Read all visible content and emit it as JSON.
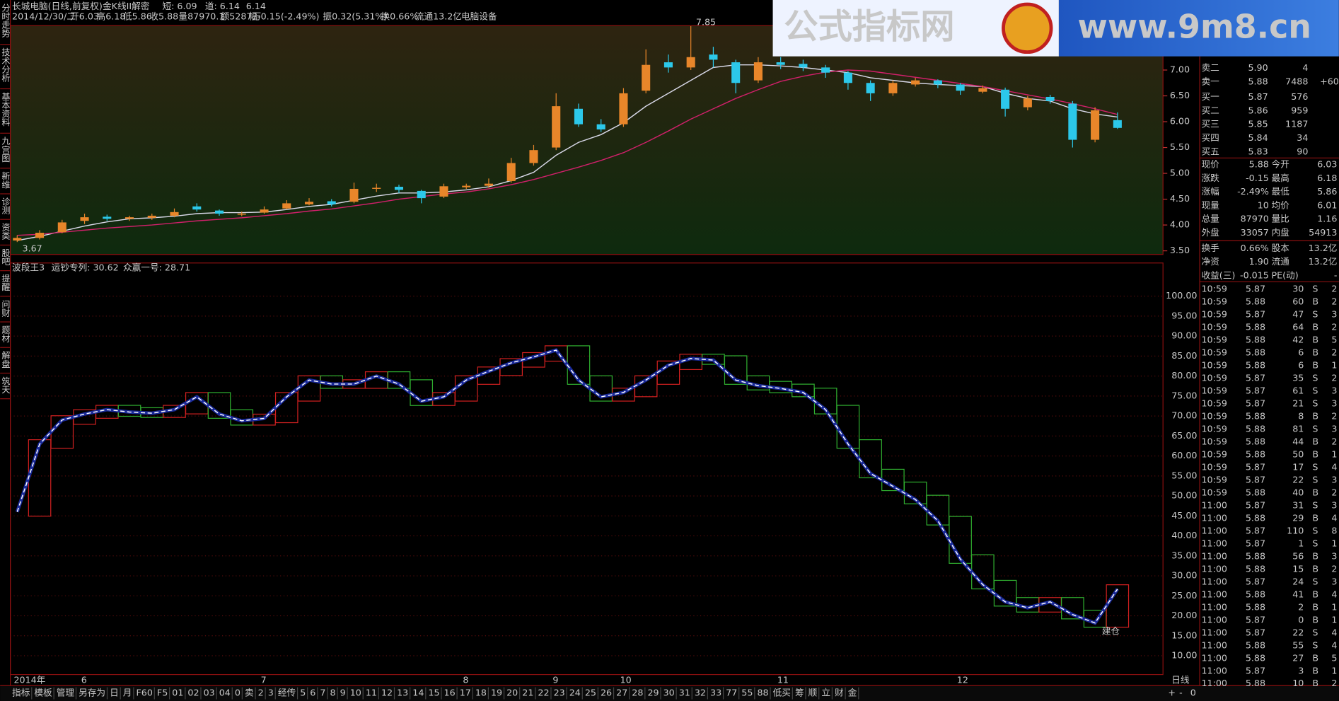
{
  "header": {
    "stock": "长城电脑(日线,前复权)",
    "formula": "金K线II解密",
    "ma_short_label": "短: 6.09",
    "ma_long_label": "道: 6.14",
    "ma_extra": "6.14",
    "date": "2014/12/30/二",
    "open": "开6.03",
    "high": "高6.18",
    "low": "低5.86",
    "close": "收5.88",
    "volume": "量87970.1",
    "amount": "额5287万",
    "change": "幅-0.15(-2.49%)",
    "amplitude": "振0.32(5.31%)",
    "turnover": "换0.66%",
    "float": "流通13.2亿",
    "sector": "电脑设备"
  },
  "sidebar": [
    "分时走势",
    "技术分析",
    "基本资料",
    "九宫图",
    "新维",
    "诊测",
    "资类",
    "股吧",
    "提醒",
    "问财",
    "题材",
    "解盘",
    "筑天"
  ],
  "watermark": {
    "title": "公式指标网",
    "url": "www.9m8.cn"
  },
  "chart_data": [
    {
      "type": "candlestick",
      "up_color": "#e8862a",
      "down_color": "#2cc8ea",
      "candles": [
        [
          3.7,
          3.8,
          3.67,
          3.75
        ],
        [
          3.75,
          3.9,
          3.72,
          3.85
        ],
        [
          3.86,
          4.1,
          3.84,
          4.05
        ],
        [
          4.08,
          4.22,
          4.02,
          4.15
        ],
        [
          4.16,
          4.2,
          4.08,
          4.12
        ],
        [
          4.12,
          4.18,
          4.08,
          4.15
        ],
        [
          4.14,
          4.22,
          4.1,
          4.18
        ],
        [
          4.18,
          4.32,
          4.15,
          4.25
        ],
        [
          4.36,
          4.42,
          4.26,
          4.3
        ],
        [
          4.28,
          4.3,
          4.18,
          4.22
        ],
        [
          4.2,
          4.26,
          4.17,
          4.22
        ],
        [
          4.24,
          4.36,
          4.22,
          4.3
        ],
        [
          4.32,
          4.48,
          4.3,
          4.42
        ],
        [
          4.4,
          4.52,
          4.38,
          4.45
        ],
        [
          4.46,
          4.5,
          4.36,
          4.4
        ],
        [
          4.45,
          4.82,
          4.42,
          4.7
        ],
        [
          4.7,
          4.8,
          4.64,
          4.72
        ],
        [
          4.74,
          4.78,
          4.62,
          4.68
        ],
        [
          4.66,
          4.68,
          4.42,
          4.52
        ],
        [
          4.55,
          4.8,
          4.52,
          4.75
        ],
        [
          4.73,
          4.8,
          4.7,
          4.76
        ],
        [
          4.76,
          4.9,
          4.72,
          4.8
        ],
        [
          4.85,
          5.3,
          4.82,
          5.2
        ],
        [
          5.2,
          5.55,
          5.15,
          5.45
        ],
        [
          5.5,
          6.55,
          5.45,
          6.3
        ],
        [
          6.25,
          6.35,
          5.9,
          5.95
        ],
        [
          5.95,
          6.05,
          5.8,
          5.85
        ],
        [
          5.95,
          6.65,
          5.9,
          6.55
        ],
        [
          6.6,
          7.4,
          6.55,
          7.1
        ],
        [
          7.15,
          7.3,
          6.95,
          7.05
        ],
        [
          7.05,
          7.85,
          7.0,
          7.25
        ],
        [
          7.3,
          7.45,
          7.05,
          7.2
        ],
        [
          7.15,
          7.2,
          6.55,
          6.75
        ],
        [
          6.8,
          7.25,
          6.75,
          7.15
        ],
        [
          7.15,
          7.25,
          7.02,
          7.1
        ],
        [
          7.12,
          7.2,
          6.98,
          7.05
        ],
        [
          7.05,
          7.1,
          6.85,
          6.95
        ],
        [
          6.95,
          6.98,
          6.62,
          6.75
        ],
        [
          6.75,
          6.8,
          6.4,
          6.55
        ],
        [
          6.55,
          6.8,
          6.5,
          6.75
        ],
        [
          6.72,
          6.85,
          6.68,
          6.8
        ],
        [
          6.8,
          6.82,
          6.65,
          6.72
        ],
        [
          6.72,
          6.75,
          6.52,
          6.6
        ],
        [
          6.58,
          6.7,
          6.55,
          6.65
        ],
        [
          6.62,
          6.66,
          6.1,
          6.25
        ],
        [
          6.28,
          6.5,
          6.22,
          6.45
        ],
        [
          6.48,
          6.52,
          6.35,
          6.4
        ],
        [
          6.35,
          6.4,
          5.5,
          5.65
        ],
        [
          5.65,
          6.28,
          5.6,
          6.22
        ],
        [
          6.03,
          6.18,
          5.86,
          5.88
        ]
      ],
      "lines": [
        {
          "color": "#d8d8e8",
          "values": [
            3.7,
            3.78,
            3.88,
            3.98,
            4.06,
            4.12,
            4.14,
            4.17,
            4.22,
            4.24,
            4.24,
            4.25,
            4.3,
            4.36,
            4.4,
            4.48,
            4.56,
            4.62,
            4.62,
            4.64,
            4.68,
            4.74,
            4.86,
            5.02,
            5.35,
            5.6,
            5.75,
            5.98,
            6.3,
            6.55,
            6.8,
            7.05,
            7.1,
            7.1,
            7.08,
            7.05,
            7.0,
            6.95,
            6.85,
            6.8,
            6.75,
            6.72,
            6.7,
            6.68,
            6.55,
            6.45,
            6.4,
            6.25,
            6.15,
            6.09
          ]
        },
        {
          "color": "#d0206a",
          "values": [
            3.8,
            3.82,
            3.86,
            3.9,
            3.94,
            3.97,
            4.0,
            4.04,
            4.08,
            4.11,
            4.14,
            4.18,
            4.22,
            4.27,
            4.31,
            4.37,
            4.43,
            4.5,
            4.55,
            4.6,
            4.64,
            4.7,
            4.78,
            4.88,
            5.0,
            5.12,
            5.25,
            5.4,
            5.6,
            5.82,
            6.05,
            6.25,
            6.45,
            6.62,
            6.78,
            6.88,
            6.96,
            7.0,
            6.98,
            6.92,
            6.86,
            6.8,
            6.74,
            6.68,
            6.6,
            6.52,
            6.44,
            6.35,
            6.25,
            6.14
          ]
        }
      ],
      "max_label": "7.85",
      "min_label": "3.67",
      "ylim": [
        3.43,
        7.86
      ],
      "yticks": [
        {
          "value": 3.5,
          "label": "3.50"
        },
        {
          "value": 4,
          "label": "4.00"
        },
        {
          "value": 4.5,
          "label": "4.50"
        },
        {
          "value": 5,
          "label": "5.00"
        },
        {
          "value": 5.5,
          "label": "5.50"
        },
        {
          "value": 6,
          "label": "6.00"
        },
        {
          "value": 6.5,
          "label": "6.50"
        },
        {
          "value": 7,
          "label": "7.00"
        }
      ]
    },
    {
      "type": "line",
      "title": "波段王3",
      "annotations": [
        "运钞专列: 30.62",
        "众赢一号: 28.71"
      ],
      "signal": "建仓",
      "color": "#ffffff",
      "rise_color": "#d02020",
      "fall_color": "#30b030",
      "categories": [
        "2014年",
        null,
        null,
        "6",
        null,
        null,
        null,
        null,
        null,
        null,
        null,
        "7",
        null,
        null,
        null,
        null,
        null,
        null,
        null,
        null,
        "8",
        null,
        null,
        null,
        "9",
        null,
        null,
        "10",
        null,
        null,
        null,
        null,
        null,
        null,
        "11",
        null,
        null,
        null,
        null,
        null,
        null,
        null,
        "12",
        null,
        null,
        null,
        null,
        null,
        null,
        null
      ],
      "values": [
        46,
        63,
        69,
        70.5,
        71.6,
        71,
        70.7,
        71.6,
        74.8,
        70.5,
        68.8,
        69.4,
        74.8,
        79,
        78,
        78,
        80,
        78,
        73.7,
        74.8,
        79,
        81.2,
        83.3,
        84.8,
        86.5,
        79,
        74.8,
        75.9,
        79,
        82.7,
        84.4,
        84,
        79,
        77.6,
        76.9,
        75.9,
        71.6,
        63,
        55.6,
        52.4,
        49.1,
        43.8,
        34.2,
        27.8,
        23.5,
        22,
        23.5,
        20.3,
        18.2,
        26.7
      ],
      "ylim": [
        5.3,
        108.3
      ],
      "yticks": [
        {
          "value": 10,
          "label": "10.00"
        },
        {
          "value": 15,
          "label": "15.00"
        },
        {
          "value": 20,
          "label": "20.00"
        },
        {
          "value": 25,
          "label": "25.00"
        },
        {
          "value": 30,
          "label": "30.00"
        },
        {
          "value": 35,
          "label": "35.00"
        },
        {
          "value": 40,
          "label": "40.00"
        },
        {
          "value": 45,
          "label": "45.00"
        },
        {
          "value": 50,
          "label": "50.00"
        },
        {
          "value": 55,
          "label": "55.00"
        },
        {
          "value": 60,
          "label": "60.00"
        },
        {
          "value": 65,
          "label": "65.00"
        },
        {
          "value": 70,
          "label": "70.00"
        },
        {
          "value": 75,
          "label": "75.00"
        },
        {
          "value": 80,
          "label": "80.00"
        },
        {
          "value": 85,
          "label": "85.00"
        },
        {
          "value": 90,
          "label": "90.00"
        },
        {
          "value": 95,
          "label": "95.00"
        },
        {
          "value": 100,
          "label": "100.00"
        }
      ],
      "grid": true
    }
  ],
  "right_panel": {
    "order_book": [
      [
        "卖二",
        "5.90",
        "4"
      ],
      [
        "卖一",
        "5.88",
        "7488",
        "+60"
      ],
      [
        "买一",
        "5.87",
        "576"
      ],
      [
        "买二",
        "5.86",
        "959"
      ],
      [
        "买三",
        "5.85",
        "1187"
      ],
      [
        "买四",
        "5.84",
        "34"
      ],
      [
        "买五",
        "5.83",
        "90"
      ]
    ],
    "quote": [
      [
        "现价",
        "5.88",
        "今开",
        "6.03"
      ],
      [
        "涨跌",
        "-0.15",
        "最高",
        "6.18"
      ],
      [
        "涨幅",
        "-2.49%",
        "最低",
        "5.86"
      ],
      [
        "现量",
        "10",
        "均价",
        "6.01"
      ],
      [
        "总量",
        "87970",
        "量比",
        "1.16"
      ],
      [
        "外盘",
        "33057",
        "内盘",
        "54913"
      ],
      [
        "换手",
        "0.66%",
        "股本",
        "13.2亿"
      ],
      [
        "净资",
        "1.90",
        "流通",
        "13.2亿"
      ],
      [
        "收益(三)",
        "-0.015",
        "PE(动)",
        "-"
      ]
    ],
    "trades": [
      [
        "10:59",
        "5.87",
        "30",
        "S",
        "2"
      ],
      [
        "10:59",
        "5.88",
        "60",
        "B",
        "2"
      ],
      [
        "10:59",
        "5.87",
        "47",
        "S",
        "3"
      ],
      [
        "10:59",
        "5.88",
        "64",
        "B",
        "2"
      ],
      [
        "10:59",
        "5.88",
        "42",
        "B",
        "5"
      ],
      [
        "10:59",
        "5.88",
        "6",
        "B",
        "2"
      ],
      [
        "10:59",
        "5.88",
        "6",
        "B",
        "1"
      ],
      [
        "10:59",
        "5.87",
        "35",
        "S",
        "2"
      ],
      [
        "10:59",
        "5.87",
        "61",
        "S",
        "3"
      ],
      [
        "10:59",
        "5.87",
        "21",
        "S",
        "3"
      ],
      [
        "10:59",
        "5.88",
        "8",
        "B",
        "2"
      ],
      [
        "10:59",
        "5.88",
        "81",
        "S",
        "3"
      ],
      [
        "10:59",
        "5.88",
        "44",
        "B",
        "2"
      ],
      [
        "10:59",
        "5.88",
        "50",
        "B",
        "1"
      ],
      [
        "10:59",
        "5.87",
        "17",
        "S",
        "4"
      ],
      [
        "10:59",
        "5.87",
        "22",
        "S",
        "3"
      ],
      [
        "10:59",
        "5.88",
        "40",
        "B",
        "2"
      ],
      [
        "11:00",
        "5.87",
        "31",
        "S",
        "3"
      ],
      [
        "11:00",
        "5.88",
        "29",
        "B",
        "4"
      ],
      [
        "11:00",
        "5.87",
        "110",
        "S",
        "8"
      ],
      [
        "11:00",
        "5.87",
        "1",
        "S",
        "1"
      ],
      [
        "11:00",
        "5.88",
        "56",
        "B",
        "3"
      ],
      [
        "11:00",
        "5.88",
        "15",
        "B",
        "2"
      ],
      [
        "11:00",
        "5.87",
        "24",
        "S",
        "3"
      ],
      [
        "11:00",
        "5.88",
        "41",
        "B",
        "4"
      ],
      [
        "11:00",
        "5.88",
        "2",
        "B",
        "1"
      ],
      [
        "11:00",
        "5.87",
        "0",
        "B",
        "1"
      ],
      [
        "11:00",
        "5.87",
        "22",
        "S",
        "4"
      ],
      [
        "11:00",
        "5.88",
        "55",
        "S",
        "4"
      ],
      [
        "11:00",
        "5.88",
        "27",
        "B",
        "5"
      ],
      [
        "11:00",
        "5.87",
        "3",
        "B",
        "1"
      ],
      [
        "11:00",
        "5.88",
        "10",
        "B",
        "2"
      ]
    ]
  },
  "bottom": {
    "tabs": [
      "指标",
      "模板",
      "管理",
      "另存为",
      "日",
      "月",
      "F60",
      "F5",
      "01",
      "02",
      "03",
      "04",
      "0",
      "卖",
      "2",
      "3",
      "经传",
      "5",
      "6",
      "7",
      "8",
      "9",
      "10",
      "11",
      "12",
      "13",
      "14",
      "15",
      "16",
      "17",
      "18",
      "19",
      "20",
      "21",
      "22",
      "23",
      "24",
      "25",
      "26",
      "27",
      "28",
      "29",
      "30",
      "31",
      "32",
      "33",
      "77",
      "55",
      "88",
      "低买",
      "筹",
      "顺",
      "立",
      "财",
      "金"
    ],
    "period": "日线",
    "controls": [
      "+",
      "-",
      "0"
    ]
  }
}
